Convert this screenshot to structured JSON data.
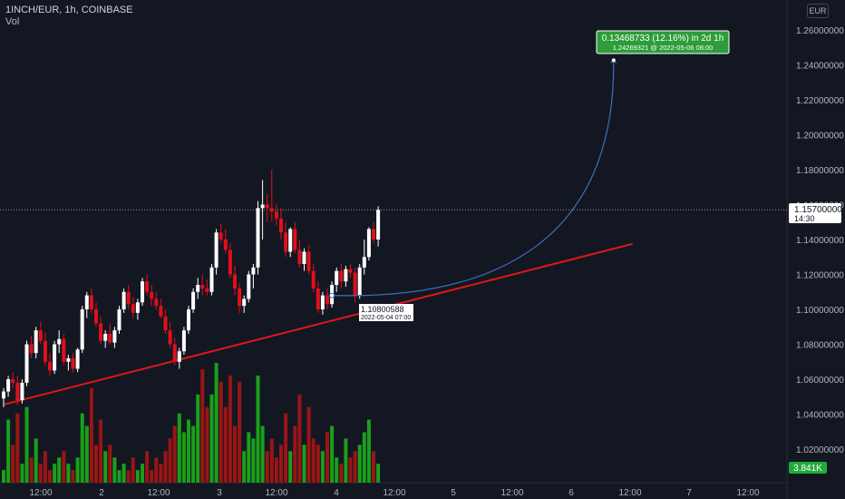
{
  "header": {
    "symbol": "1INCH/EUR, 1h, COINBASE",
    "volume_label": "Vol"
  },
  "currency_button": "EUR",
  "colors": {
    "up": "#ffffff",
    "down": "#e0101a",
    "vol_up": "#1a9f1a",
    "vol_down": "#991515",
    "trendline": "#e01818",
    "arc": "#3e6fc0",
    "label_green": "#089981"
  },
  "price_label": {
    "value": "1.15700000",
    "countdown": "14:30"
  },
  "volume_badge": "3.841K",
  "projection_label": {
    "line1": "0.13468733 (12.16%) in 2d 1h",
    "line2": "1.24269321 @ 2022-05-06  08:00"
  },
  "anchor_label": {
    "line1": "1.10800588",
    "line2": "2022-05-04 07:00"
  },
  "chart_data": {
    "type": "candlestick",
    "title": "1INCH/EUR, 1h, COINBASE",
    "y_axis": {
      "ylim": [
        1.0,
        1.27
      ],
      "ticks": [
        "1.02000000",
        "1.04000000",
        "1.06000000",
        "1.08000000",
        "1.10000000",
        "1.12000000",
        "1.14000000",
        "1.16000000",
        "1.18000000",
        "1.20000000",
        "1.22000000",
        "1.24000000",
        "1.26000000"
      ]
    },
    "x_axis": {
      "ticks": [
        "12:00",
        "2",
        "12:00",
        "3",
        "12:00",
        "4",
        "12:00",
        "5",
        "12:00",
        "6",
        "12:00",
        "7",
        "12:00"
      ]
    },
    "candles": [
      [
        1.049,
        1.055,
        1.044,
        1.053,
        2
      ],
      [
        1.053,
        1.062,
        1.05,
        1.06,
        10
      ],
      [
        1.06,
        1.064,
        1.055,
        1.058,
        6
      ],
      [
        1.058,
        1.062,
        1.045,
        1.048,
        11
      ],
      [
        1.048,
        1.06,
        1.046,
        1.058,
        3
      ],
      [
        1.058,
        1.082,
        1.056,
        1.08,
        12
      ],
      [
        1.08,
        1.085,
        1.072,
        1.075,
        4
      ],
      [
        1.075,
        1.09,
        1.072,
        1.088,
        7
      ],
      [
        1.088,
        1.093,
        1.08,
        1.082,
        3
      ],
      [
        1.082,
        1.087,
        1.068,
        1.07,
        5
      ],
      [
        1.07,
        1.075,
        1.062,
        1.065,
        2
      ],
      [
        1.065,
        1.082,
        1.063,
        1.08,
        3
      ],
      [
        1.08,
        1.088,
        1.075,
        1.083,
        4
      ],
      [
        1.083,
        1.086,
        1.068,
        1.07,
        5
      ],
      [
        1.07,
        1.074,
        1.065,
        1.072,
        3
      ],
      [
        1.072,
        1.075,
        1.064,
        1.066,
        2
      ],
      [
        1.066,
        1.078,
        1.064,
        1.077,
        4
      ],
      [
        1.077,
        1.102,
        1.075,
        1.1,
        11
      ],
      [
        1.1,
        1.11,
        1.095,
        1.108,
        9
      ],
      [
        1.108,
        1.112,
        1.098,
        1.1,
        15
      ],
      [
        1.1,
        1.104,
        1.09,
        1.092,
        6
      ],
      [
        1.092,
        1.096,
        1.08,
        1.082,
        10
      ],
      [
        1.082,
        1.088,
        1.078,
        1.086,
        5
      ],
      [
        1.086,
        1.092,
        1.08,
        1.081,
        6
      ],
      [
        1.081,
        1.09,
        1.078,
        1.088,
        4
      ],
      [
        1.088,
        1.102,
        1.086,
        1.1,
        2
      ],
      [
        1.1,
        1.112,
        1.098,
        1.11,
        3
      ],
      [
        1.11,
        1.114,
        1.1,
        1.103,
        2
      ],
      [
        1.103,
        1.107,
        1.095,
        1.098,
        4
      ],
      [
        1.098,
        1.106,
        1.094,
        1.104,
        2
      ],
      [
        1.104,
        1.118,
        1.102,
        1.116,
        3
      ],
      [
        1.116,
        1.12,
        1.108,
        1.11,
        5
      ],
      [
        1.11,
        1.114,
        1.102,
        1.106,
        2
      ],
      [
        1.106,
        1.11,
        1.1,
        1.102,
        4
      ],
      [
        1.102,
        1.106,
        1.095,
        1.096,
        3
      ],
      [
        1.096,
        1.1,
        1.086,
        1.088,
        5
      ],
      [
        1.088,
        1.093,
        1.078,
        1.08,
        7
      ],
      [
        1.08,
        1.084,
        1.068,
        1.07,
        9
      ],
      [
        1.07,
        1.078,
        1.066,
        1.076,
        11
      ],
      [
        1.076,
        1.09,
        1.074,
        1.088,
        8
      ],
      [
        1.088,
        1.102,
        1.086,
        1.1,
        10
      ],
      [
        1.1,
        1.112,
        1.098,
        1.11,
        9
      ],
      [
        1.11,
        1.118,
        1.106,
        1.114,
        14
      ],
      [
        1.114,
        1.12,
        1.108,
        1.112,
        18
      ],
      [
        1.112,
        1.117,
        1.108,
        1.11,
        12
      ],
      [
        1.11,
        1.126,
        1.108,
        1.124,
        14
      ],
      [
        1.124,
        1.146,
        1.12,
        1.144,
        19
      ],
      [
        1.144,
        1.149,
        1.138,
        1.14,
        16
      ],
      [
        1.14,
        1.146,
        1.132,
        1.134,
        12
      ],
      [
        1.134,
        1.138,
        1.118,
        1.12,
        17
      ],
      [
        1.12,
        1.125,
        1.108,
        1.112,
        9
      ],
      [
        1.112,
        1.115,
        1.098,
        1.102,
        16
      ],
      [
        1.102,
        1.108,
        1.098,
        1.106,
        5
      ],
      [
        1.106,
        1.122,
        1.104,
        1.12,
        8
      ],
      [
        1.12,
        1.126,
        1.112,
        1.124,
        7
      ],
      [
        1.124,
        1.162,
        1.12,
        1.158,
        17
      ],
      [
        1.158,
        1.174,
        1.14,
        1.16,
        9
      ],
      [
        1.16,
        1.166,
        1.15,
        1.158,
        5
      ],
      [
        1.158,
        1.18,
        1.15,
        1.156,
        7
      ],
      [
        1.156,
        1.16,
        1.148,
        1.152,
        4
      ],
      [
        1.152,
        1.158,
        1.14,
        1.144,
        6
      ],
      [
        1.144,
        1.15,
        1.13,
        1.133,
        11
      ],
      [
        1.133,
        1.147,
        1.13,
        1.146,
        5
      ],
      [
        1.146,
        1.15,
        1.132,
        1.134,
        9
      ],
      [
        1.134,
        1.14,
        1.124,
        1.126,
        14
      ],
      [
        1.126,
        1.135,
        1.122,
        1.133,
        6
      ],
      [
        1.133,
        1.137,
        1.12,
        1.122,
        12
      ],
      [
        1.122,
        1.126,
        1.11,
        1.112,
        7
      ],
      [
        1.112,
        1.116,
        1.098,
        1.1,
        6
      ],
      [
        1.1,
        1.11,
        1.097,
        1.108,
        5
      ],
      [
        1.108,
        1.112,
        1.1,
        1.103,
        8
      ],
      [
        1.103,
        1.116,
        1.101,
        1.114,
        9
      ],
      [
        1.114,
        1.124,
        1.11,
        1.122,
        4
      ],
      [
        1.122,
        1.126,
        1.112,
        1.116,
        3
      ],
      [
        1.116,
        1.125,
        1.113,
        1.123,
        7
      ],
      [
        1.123,
        1.126,
        1.118,
        1.121,
        4
      ],
      [
        1.121,
        1.124,
        1.104,
        1.108,
        5
      ],
      [
        1.108,
        1.126,
        1.106,
        1.124,
        6
      ],
      [
        1.124,
        1.14,
        1.12,
        1.13,
        8
      ],
      [
        1.13,
        1.147,
        1.128,
        1.146,
        10
      ],
      [
        1.146,
        1.15,
        1.138,
        1.14,
        5
      ],
      [
        1.14,
        1.159,
        1.136,
        1.157,
        3
      ]
    ],
    "candle_encoding": [
      "open",
      "high",
      "low",
      "close",
      "volume_relative"
    ],
    "trendline": {
      "from": {
        "bar": 0,
        "price": 1.0455
      },
      "to": {
        "bar": 136,
        "price": 1.1375
      }
    },
    "price_range_projection": {
      "start": {
        "bar": 71,
        "price": 1.10800588
      },
      "end": {
        "bar": 118,
        "price": 1.24269321
      },
      "change": 0.13468733,
      "percent": 12.16
    }
  }
}
